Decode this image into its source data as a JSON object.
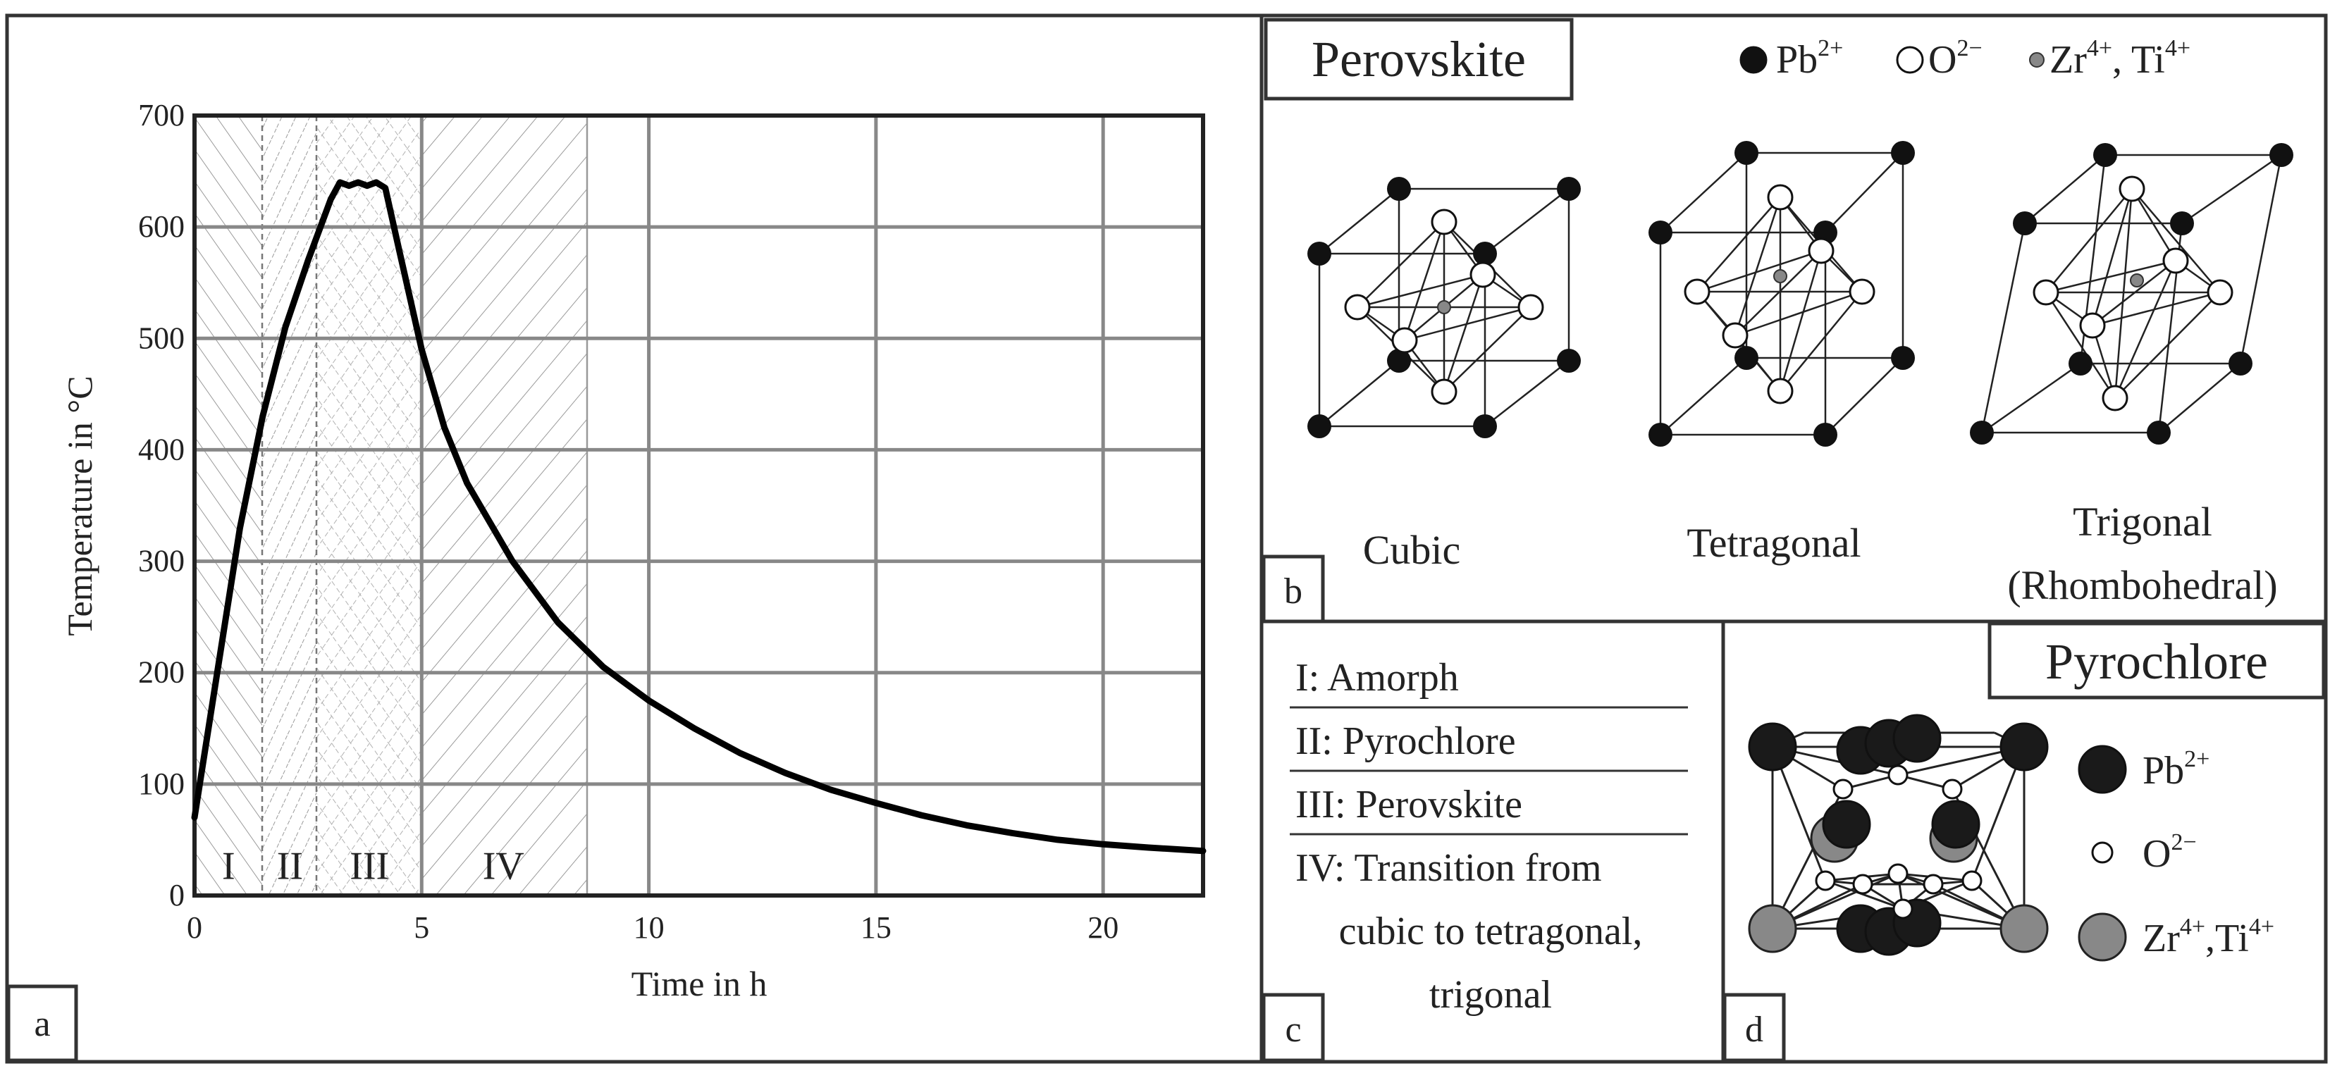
{
  "panels": {
    "a": {
      "label": "a"
    },
    "b": {
      "label": "b",
      "title": "Perovskite",
      "legend": [
        {
          "icon": "filled-black-circle",
          "text": "Pb",
          "sup": "2+"
        },
        {
          "icon": "open-circle",
          "text": "O",
          "sup": "2−"
        },
        {
          "icon": "small-gray-circle",
          "text": "Zr",
          "sup": "4+",
          "text2": ", Ti",
          "sup2": "4+"
        }
      ],
      "structures": [
        {
          "name": "Cubic"
        },
        {
          "name": "Tetragonal"
        },
        {
          "name": "Trigonal",
          "name2": "(Rhombohedral)"
        }
      ]
    },
    "c": {
      "label": "c",
      "items": [
        "I: Amorph",
        "II: Pyrochlore",
        "III: Perovskite",
        "IV: Transition from",
        "cubic to tetragonal,",
        "trigonal"
      ]
    },
    "d": {
      "label": "d",
      "title": "Pyrochlore",
      "legend": [
        {
          "icon": "large-black-circle",
          "text": "Pb",
          "sup": "2+"
        },
        {
          "icon": "small-open-circle",
          "text": "O",
          "sup": "2−"
        },
        {
          "icon": "large-gray-circle",
          "text": "Zr",
          "sup": "4+",
          "text2": ",Ti",
          "sup2": "4+"
        }
      ]
    }
  },
  "chart_data": {
    "type": "line",
    "title": "",
    "xlabel": "Time in h",
    "ylabel": "Temperature in °C",
    "xlim": [
      0,
      22.2
    ],
    "ylim": [
      0,
      700
    ],
    "xticks": [
      0,
      5,
      10,
      15,
      20
    ],
    "yticks": [
      0,
      100,
      200,
      300,
      400,
      500,
      600,
      700
    ],
    "grid": true,
    "regions": [
      {
        "label": "I",
        "x": [
          0,
          1.5
        ]
      },
      {
        "label": "II",
        "x": [
          1.5,
          2.7
        ]
      },
      {
        "label": "III",
        "x": [
          2.7,
          5.0
        ]
      },
      {
        "label": "IV",
        "x": [
          5.0,
          8.6
        ]
      }
    ],
    "series": [
      {
        "x": [
          0,
          0.5,
          1.0,
          1.5,
          2.0,
          2.5,
          3.0,
          3.2,
          3.4,
          3.6,
          3.8,
          4.0,
          4.2,
          4.5,
          5.0,
          5.5,
          6,
          7,
          8,
          9,
          10,
          11,
          12,
          13,
          14,
          15,
          16,
          17,
          18,
          19,
          20,
          21,
          22.2
        ],
        "y": [
          70,
          200,
          330,
          430,
          510,
          570,
          625,
          640,
          637,
          640,
          637,
          640,
          635,
          580,
          490,
          420,
          370,
          300,
          245,
          205,
          175,
          150,
          128,
          110,
          95,
          83,
          72,
          63,
          56,
          50,
          46,
          43,
          40
        ]
      }
    ]
  },
  "colors": {
    "line": "#000000",
    "frame": "#333333",
    "grid": "#888888",
    "hatch": "#9a9a9a",
    "zr_ti": "#888888"
  }
}
